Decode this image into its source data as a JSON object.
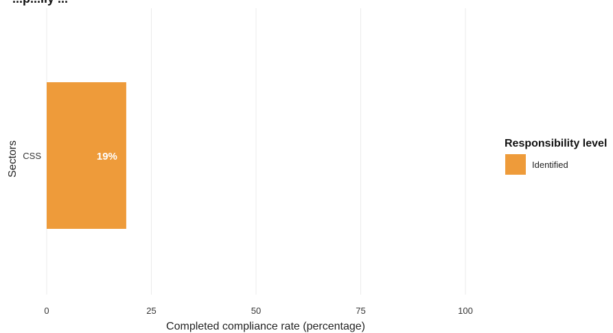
{
  "chart_data": {
    "type": "bar",
    "orientation": "horizontal",
    "title": "...p...ily ...",
    "xlabel": "Completed compliance rate (percentage)",
    "ylabel": "Sectors",
    "categories": [
      "CSS"
    ],
    "series": [
      {
        "name": "Identified",
        "values": [
          19
        ],
        "labels": [
          "19%"
        ],
        "color": "#EE9B3A"
      }
    ],
    "xlim": [
      0,
      125
    ],
    "x_ticks": [
      0,
      25,
      50,
      75,
      100
    ],
    "x_tick_labels": [
      "0",
      "25",
      "50",
      "75",
      "100"
    ],
    "grid": true,
    "legend": {
      "title": "Responsibility level",
      "position": "right",
      "entries": [
        "Identified"
      ]
    }
  }
}
